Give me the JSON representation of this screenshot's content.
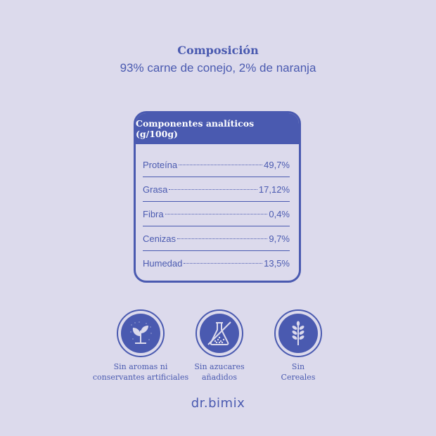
{
  "composition": {
    "title": "Composición",
    "text": "93% carne de conejo, 2% de naranja"
  },
  "analytics": {
    "header": "Componentes analíticos (g/100g)",
    "rows": [
      {
        "label": "Proteína",
        "value": "49,7%"
      },
      {
        "label": "Grasa",
        "value": "17,12%"
      },
      {
        "label": "Fibra",
        "value": "0,4%"
      },
      {
        "label": "Cenizas",
        "value": "9,7%"
      },
      {
        "label": "Humedad",
        "value": "13,5%"
      }
    ]
  },
  "badges": [
    {
      "icon": "leaf-sprout-icon",
      "line1": "Sin aromas ni",
      "line2": "conservantes artificiales"
    },
    {
      "icon": "flask-sugar-icon",
      "line1": "Sin azucares",
      "line2": "añadidos"
    },
    {
      "icon": "wheat-icon",
      "line1": "Sin",
      "line2": "Cereales"
    }
  ],
  "brand": "dr.bimix",
  "colors": {
    "accent": "#4a5ab0",
    "background": "#dcdaec"
  }
}
